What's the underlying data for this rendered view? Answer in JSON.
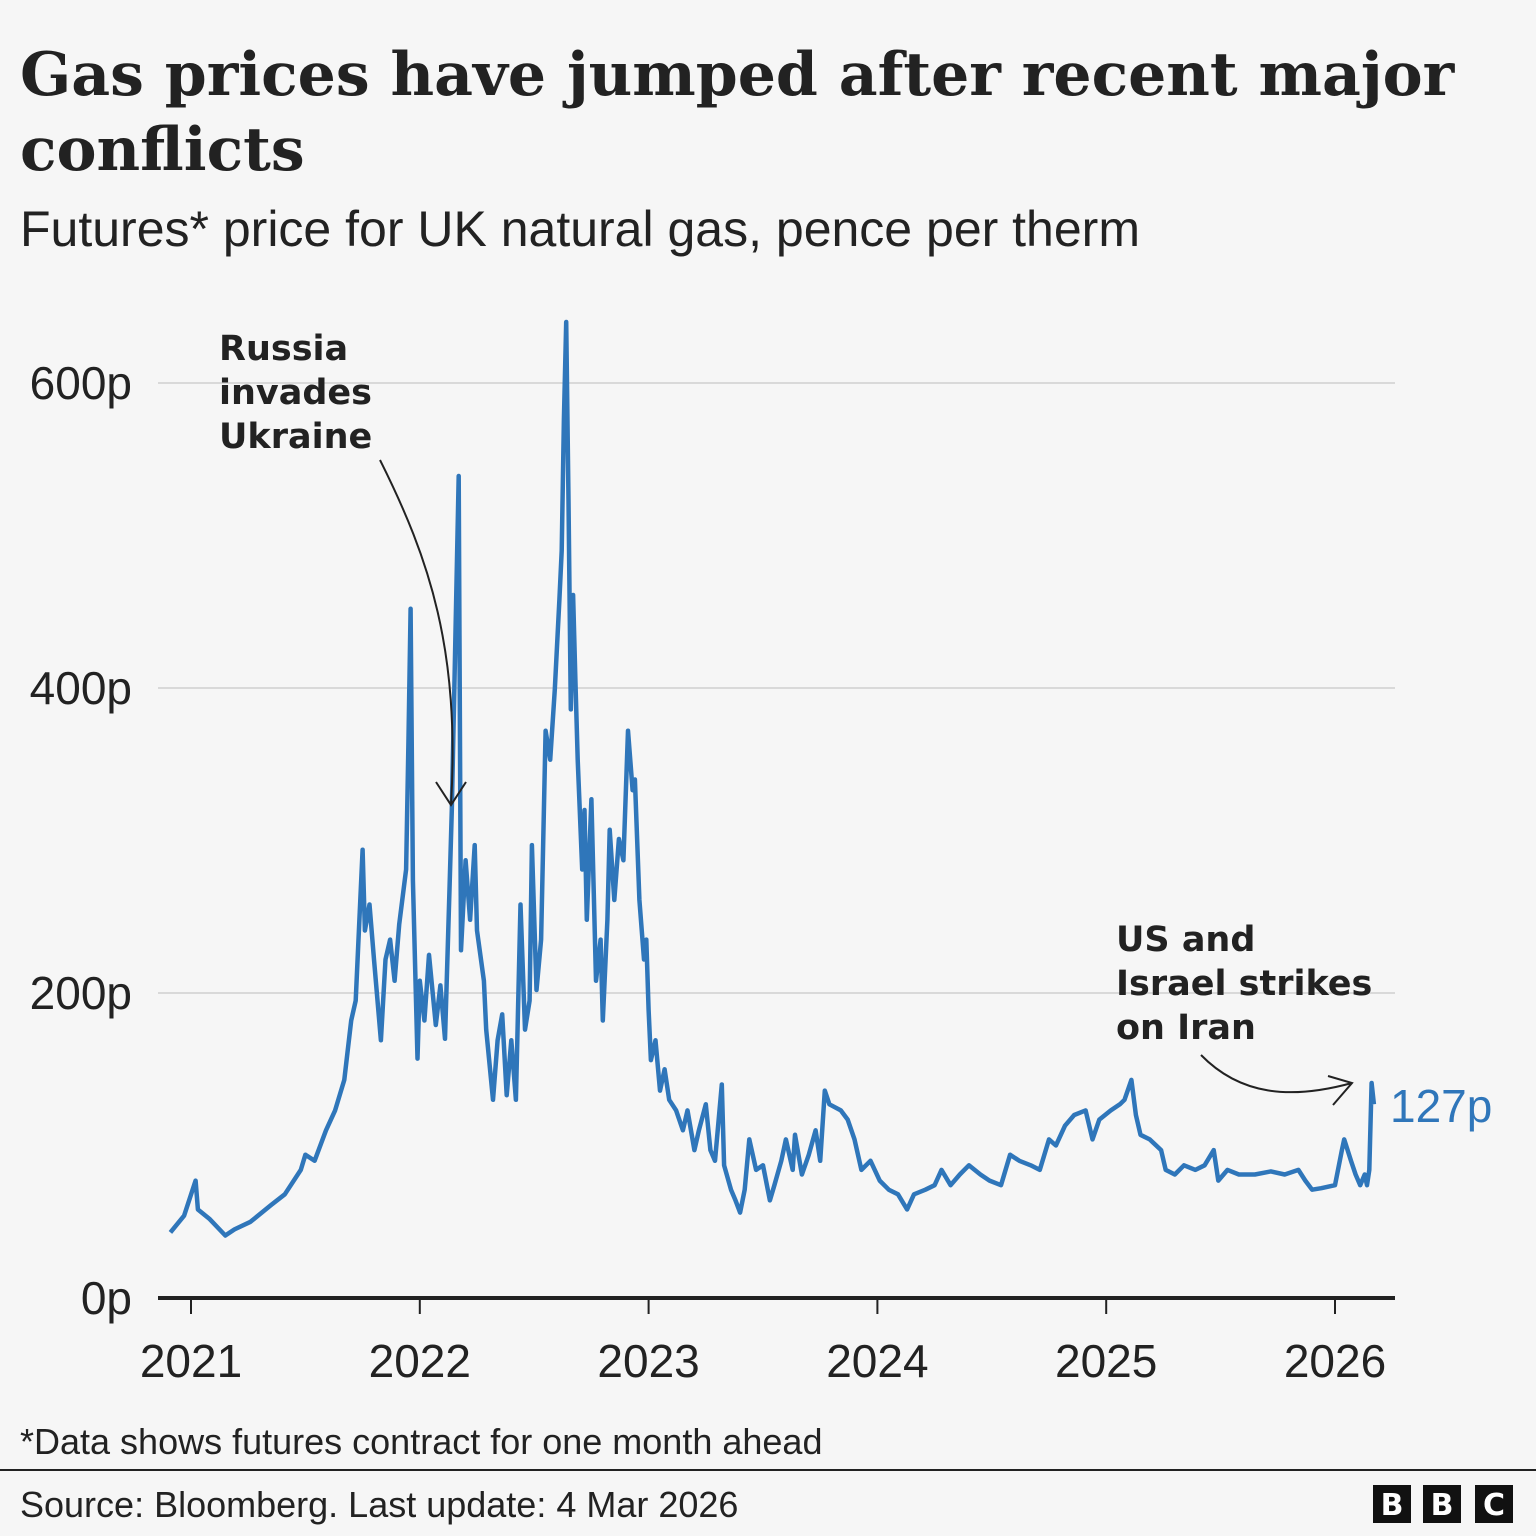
{
  "title_lines": [
    "Gas prices have jumped after recent major",
    "conflicts"
  ],
  "subtitle": "Futures* price for UK natural gas, pence per therm",
  "footnote": "*Data shows futures contract for one month ahead",
  "source": "Source: Bloomberg. Last update: 4 Mar 2026",
  "logo": [
    "B",
    "B",
    "C"
  ],
  "colors": {
    "line": "#2f76ba",
    "text": "#222222",
    "grid": "#d9d9d9",
    "axis": "#222222",
    "background": "#f6f6f6"
  },
  "chart_data": {
    "type": "line",
    "title": "Gas prices have jumped after recent major conflicts",
    "subtitle": "Futures* price for UK natural gas, pence per therm",
    "xlabel": "",
    "ylabel": "",
    "xlim": [
      2020.9,
      2026.2
    ],
    "ylim": [
      0,
      600
    ],
    "grid": true,
    "x_ticks": [
      2021,
      2022,
      2023,
      2024,
      2025,
      2026
    ],
    "x_tick_labels": [
      "2021",
      "2022",
      "2023",
      "2024",
      "2025",
      "2026"
    ],
    "y_ticks": [
      0,
      200,
      400,
      600
    ],
    "y_tick_labels": [
      "0p",
      "200p",
      "400p",
      "600p"
    ],
    "end_label": "127p",
    "annotations": [
      {
        "lines": [
          "Russia",
          "invades",
          "Ukraine"
        ],
        "x": 2022.15,
        "y": 320
      },
      {
        "lines": [
          "US and",
          "Israel strikes",
          "on Iran"
        ],
        "x": 2026.1,
        "y": 141
      }
    ],
    "x": [
      2020.91,
      2020.97,
      2021.02,
      2021.03,
      2021.08,
      2021.15,
      2021.19,
      2021.26,
      2021.35,
      2021.41,
      2021.48,
      2021.5,
      2021.54,
      2021.59,
      2021.63,
      2021.67,
      2021.7,
      2021.72,
      2021.75,
      2021.76,
      2021.78,
      2021.8,
      2021.83,
      2021.85,
      2021.87,
      2021.89,
      2021.91,
      2021.94,
      2021.95,
      2021.96,
      2021.97,
      2021.99,
      2022.0,
      2022.02,
      2022.04,
      2022.07,
      2022.09,
      2022.11,
      2022.13,
      2022.14,
      2022.15,
      2022.17,
      2022.18,
      2022.2,
      2022.22,
      2022.24,
      2022.25,
      2022.28,
      2022.29,
      2022.32,
      2022.34,
      2022.36,
      2022.38,
      2022.4,
      2022.42,
      2022.44,
      2022.46,
      2022.48,
      2022.49,
      2022.51,
      2022.53,
      2022.55,
      2022.57,
      2022.59,
      2022.61,
      2022.62,
      2022.63,
      2022.64,
      2022.65,
      2022.66,
      2022.67,
      2022.68,
      2022.69,
      2022.71,
      2022.72,
      2022.73,
      2022.75,
      2022.77,
      2022.79,
      2022.8,
      2022.82,
      2022.83,
      2022.85,
      2022.87,
      2022.89,
      2022.91,
      2022.93,
      2022.94,
      2022.96,
      2022.98,
      2022.99,
      2023.0,
      2023.01,
      2023.03,
      2023.05,
      2023.07,
      2023.09,
      2023.12,
      2023.15,
      2023.17,
      2023.2,
      2023.22,
      2023.25,
      2023.27,
      2023.29,
      2023.32,
      2023.33,
      2023.36,
      2023.38,
      2023.4,
      2023.42,
      2023.44,
      2023.47,
      2023.5,
      2023.53,
      2023.55,
      2023.58,
      2023.6,
      2023.63,
      2023.64,
      2023.67,
      2023.7,
      2023.73,
      2023.75,
      2023.77,
      2023.79,
      2023.84,
      2023.87,
      2023.9,
      2023.93,
      2023.97,
      2024.01,
      2024.05,
      2024.09,
      2024.13,
      2024.16,
      2024.21,
      2024.25,
      2024.28,
      2024.32,
      2024.36,
      2024.4,
      2024.45,
      2024.49,
      2024.54,
      2024.58,
      2024.62,
      2024.67,
      2024.71,
      2024.75,
      2024.78,
      2024.82,
      2024.86,
      2024.91,
      2024.94,
      2024.97,
      2025.02,
      2025.06,
      2025.08,
      2025.11,
      2025.13,
      2025.15,
      2025.19,
      2025.24,
      2025.26,
      2025.3,
      2025.34,
      2025.39,
      2025.43,
      2025.47,
      2025.49,
      2025.53,
      2025.58,
      2025.65,
      2025.72,
      2025.78,
      2025.84,
      2025.87,
      2025.9,
      2025.94,
      2026.0,
      2026.03,
      2026.04,
      2026.07,
      2026.09,
      2026.11,
      2026.13,
      2026.14,
      2026.15,
      2026.16,
      2026.17
    ],
    "y": [
      43,
      54,
      77,
      58,
      52,
      41,
      45,
      50,
      61,
      68,
      84,
      94,
      90,
      110,
      123,
      143,
      182,
      195,
      294,
      241,
      258,
      222,
      169,
      222,
      235,
      208,
      245,
      281,
      363,
      452,
      274,
      157,
      208,
      182,
      225,
      179,
      205,
      170,
      268,
      320,
      392,
      539,
      228,
      287,
      248,
      297,
      241,
      208,
      176,
      130,
      169,
      186,
      133,
      169,
      130,
      258,
      176,
      195,
      297,
      202,
      235,
      372,
      353,
      399,
      458,
      490,
      576,
      640,
      523,
      386,
      461,
      405,
      353,
      281,
      320,
      248,
      327,
      208,
      235,
      182,
      248,
      307,
      261,
      301,
      287,
      372,
      333,
      340,
      261,
      222,
      235,
      189,
      156,
      169,
      136,
      150,
      130,
      123,
      110,
      123,
      97,
      110,
      127,
      97,
      90,
      140,
      87,
      71,
      64,
      56,
      71,
      104,
      84,
      87,
      64,
      74,
      90,
      104,
      84,
      107,
      81,
      94,
      110,
      90,
      136,
      127,
      123,
      117,
      104,
      84,
      90,
      77,
      71,
      68,
      58,
      68,
      71,
      74,
      84,
      74,
      81,
      87,
      81,
      77,
      74,
      94,
      90,
      87,
      84,
      104,
      100,
      113,
      120,
      123,
      104,
      117,
      123,
      127,
      130,
      143,
      120,
      107,
      104,
      97,
      84,
      81,
      87,
      84,
      87,
      97,
      77,
      84,
      81,
      81,
      83,
      81,
      84,
      77,
      71,
      72,
      74,
      97,
      104,
      90,
      81,
      74,
      81,
      74,
      84,
      141,
      127
    ]
  }
}
